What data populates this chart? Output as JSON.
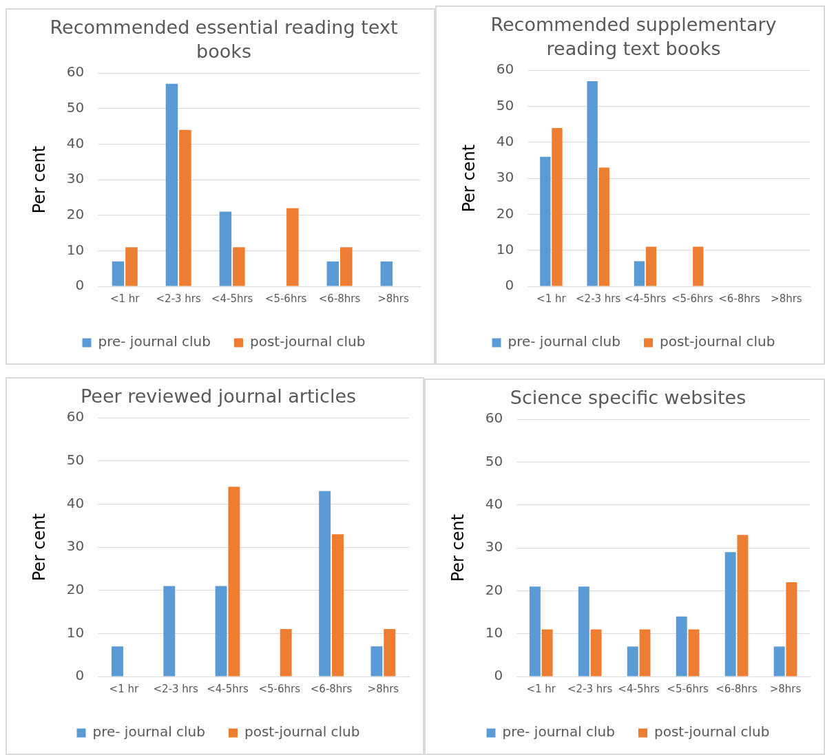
{
  "chart_data": [
    {
      "type": "bar",
      "title": "Recommended essential reading text books",
      "ylabel": "Per cent",
      "categories": [
        "<1 hr",
        "<2-3 hrs",
        "<4-5hrs",
        "<5-6hrs",
        "<6-8hrs",
        ">8hrs"
      ],
      "series": [
        {
          "name": "pre- journal club",
          "color": "#5b9bd5",
          "values": [
            7,
            57,
            21,
            0,
            7,
            7
          ]
        },
        {
          "name": "post-journal club",
          "color": "#ed7d31",
          "values": [
            11,
            44,
            11,
            22,
            11,
            0
          ]
        }
      ],
      "ylim": [
        0,
        60
      ],
      "yticks": [
        0,
        10,
        20,
        30,
        40,
        50,
        60
      ],
      "grid": "y",
      "legend": "bottom"
    },
    {
      "type": "bar",
      "title": "Recommended supplementary reading text books",
      "ylabel": "Per cent",
      "categories": [
        "<1 hr",
        "<2-3 hrs",
        "<4-5hrs",
        "<5-6hrs",
        "<6-8hrs",
        ">8hrs"
      ],
      "series": [
        {
          "name": "pre- journal club",
          "color": "#5b9bd5",
          "values": [
            36,
            57,
            7,
            0,
            0,
            0
          ]
        },
        {
          "name": "post-journal club",
          "color": "#ed7d31",
          "values": [
            44,
            33,
            11,
            11,
            0,
            0
          ]
        }
      ],
      "ylim": [
        0,
        60
      ],
      "yticks": [
        0,
        10,
        20,
        30,
        40,
        50,
        60
      ],
      "grid": "y",
      "legend": "bottom"
    },
    {
      "type": "bar",
      "title": "Peer reviewed journal articles",
      "ylabel": "Per cent",
      "categories": [
        "<1 hr",
        "<2-3 hrs",
        "<4-5hrs",
        "<5-6hrs",
        "<6-8hrs",
        ">8hrs"
      ],
      "series": [
        {
          "name": "pre- journal club",
          "color": "#5b9bd5",
          "values": [
            7,
            21,
            21,
            0,
            43,
            7
          ]
        },
        {
          "name": "post-journal club",
          "color": "#ed7d31",
          "values": [
            0,
            0,
            44,
            11,
            33,
            11
          ]
        }
      ],
      "ylim": [
        0,
        60
      ],
      "yticks": [
        0,
        10,
        20,
        30,
        40,
        50,
        60
      ],
      "grid": "y",
      "legend": "bottom"
    },
    {
      "type": "bar",
      "title": "Science specific websites",
      "ylabel": "Per cent",
      "categories": [
        "<1 hr",
        "<2-3 hrs",
        "<4-5hrs",
        "<5-6hrs",
        "<6-8hrs",
        ">8hrs"
      ],
      "series": [
        {
          "name": "pre- journal club",
          "color": "#5b9bd5",
          "values": [
            21,
            21,
            7,
            14,
            29,
            7
          ]
        },
        {
          "name": "post-journal club",
          "color": "#ed7d31",
          "values": [
            11,
            11,
            11,
            11,
            33,
            22
          ]
        }
      ],
      "ylim": [
        0,
        60
      ],
      "yticks": [
        0,
        10,
        20,
        30,
        40,
        50,
        60
      ],
      "grid": "y",
      "legend": "bottom"
    }
  ]
}
